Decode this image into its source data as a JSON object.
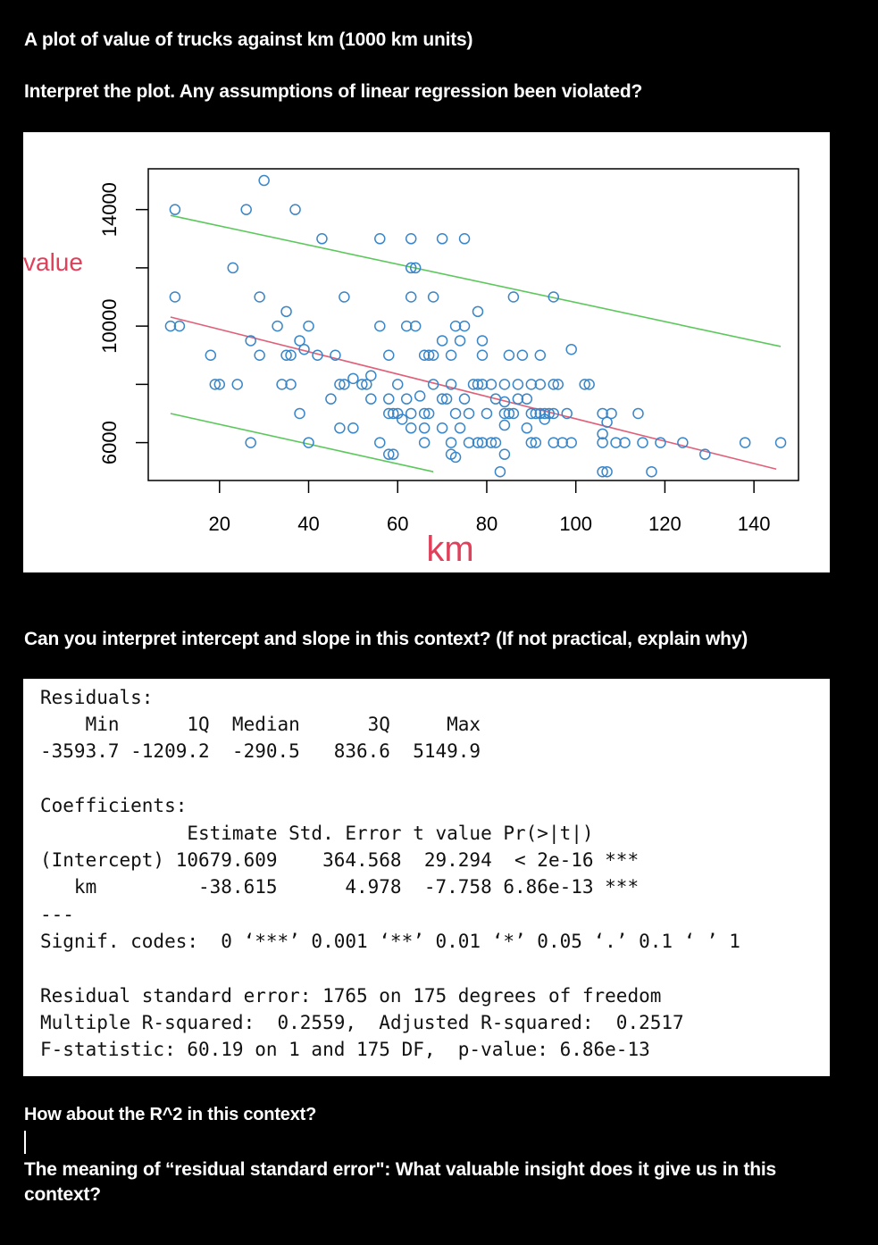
{
  "headings": {
    "h1": "A plot of value of trucks against km (1000 km units)",
    "h2": "Interpret the plot. Any assumptions of linear regression been violated?",
    "h3": "Can you interpret intercept and slope in this context? (If not practical, explain why)",
    "h4": "How about the  R^2 in this context?",
    "h5": "The meaning of “residual standard error\": What valuable insight does it give us in this context?"
  },
  "chart_data": {
    "type": "scatter",
    "xlabel": "km",
    "ylabel": "value",
    "xlim": [
      4,
      150
    ],
    "ylim": [
      4700,
      15400
    ],
    "xticks": [
      "20",
      "40",
      "60",
      "80",
      "100",
      "120",
      "140"
    ],
    "yticks": [
      "6000",
      "10000",
      "14000"
    ],
    "point_color": "#3a86c8",
    "fit_color": "#e0607a",
    "band_color": "#5bc85b",
    "points": [
      [
        10,
        14000
      ],
      [
        26,
        14000
      ],
      [
        30,
        15000
      ],
      [
        37,
        14000
      ],
      [
        43,
        13000
      ],
      [
        56,
        13000
      ],
      [
        63,
        13000
      ],
      [
        70,
        13000
      ],
      [
        75,
        13000
      ],
      [
        23,
        12000
      ],
      [
        63,
        12000
      ],
      [
        64,
        12000
      ],
      [
        63,
        11000
      ],
      [
        68,
        11000
      ],
      [
        86,
        11000
      ],
      [
        95,
        11000
      ],
      [
        10,
        11000
      ],
      [
        35,
        10500
      ],
      [
        48,
        11000
      ],
      [
        29,
        11000
      ],
      [
        9,
        10000
      ],
      [
        11,
        10000
      ],
      [
        33,
        10000
      ],
      [
        40,
        10000
      ],
      [
        56,
        10000
      ],
      [
        62,
        10000
      ],
      [
        64,
        10000
      ],
      [
        73,
        10000
      ],
      [
        75,
        10000
      ],
      [
        78,
        10500
      ],
      [
        27,
        9500
      ],
      [
        38,
        9500
      ],
      [
        39,
        9200
      ],
      [
        70,
        9500
      ],
      [
        74,
        9500
      ],
      [
        79,
        9500
      ],
      [
        99,
        9200
      ],
      [
        18,
        9000
      ],
      [
        29,
        9000
      ],
      [
        35,
        9000
      ],
      [
        36,
        9000
      ],
      [
        42,
        9000
      ],
      [
        46,
        9000
      ],
      [
        58,
        9000
      ],
      [
        66,
        9000
      ],
      [
        67,
        9000
      ],
      [
        68,
        9000
      ],
      [
        72,
        9000
      ],
      [
        79,
        9000
      ],
      [
        85,
        9000
      ],
      [
        88,
        9000
      ],
      [
        92,
        9000
      ],
      [
        19,
        8000
      ],
      [
        20,
        8000
      ],
      [
        24,
        8000
      ],
      [
        34,
        8000
      ],
      [
        36,
        8000
      ],
      [
        47,
        8000
      ],
      [
        48,
        8000
      ],
      [
        50,
        8200
      ],
      [
        52,
        8000
      ],
      [
        53,
        8000
      ],
      [
        54,
        8300
      ],
      [
        60,
        8000
      ],
      [
        68,
        8000
      ],
      [
        72,
        8000
      ],
      [
        77,
        8000
      ],
      [
        78,
        8000
      ],
      [
        79,
        8000
      ],
      [
        81,
        8000
      ],
      [
        84,
        8000
      ],
      [
        87,
        8000
      ],
      [
        90,
        8000
      ],
      [
        92,
        8000
      ],
      [
        95,
        8000
      ],
      [
        96,
        8000
      ],
      [
        102,
        8000
      ],
      [
        103,
        8000
      ],
      [
        45,
        7500
      ],
      [
        54,
        7500
      ],
      [
        58,
        7500
      ],
      [
        62,
        7500
      ],
      [
        65,
        7600
      ],
      [
        70,
        7500
      ],
      [
        71,
        7500
      ],
      [
        75,
        7500
      ],
      [
        82,
        7500
      ],
      [
        84,
        7400
      ],
      [
        87,
        7500
      ],
      [
        89,
        7500
      ],
      [
        38,
        7000
      ],
      [
        58,
        7000
      ],
      [
        59,
        7000
      ],
      [
        60,
        7000
      ],
      [
        61,
        6800
      ],
      [
        63,
        7000
      ],
      [
        66,
        7000
      ],
      [
        67,
        7000
      ],
      [
        73,
        7000
      ],
      [
        76,
        7000
      ],
      [
        80,
        7000
      ],
      [
        84,
        7000
      ],
      [
        85,
        7000
      ],
      [
        86,
        7000
      ],
      [
        90,
        7000
      ],
      [
        91,
        7000
      ],
      [
        92,
        7000
      ],
      [
        93,
        7000
      ],
      [
        94,
        7000
      ],
      [
        95,
        7000
      ],
      [
        98,
        7000
      ],
      [
        106,
        7000
      ],
      [
        108,
        7000
      ],
      [
        114,
        7000
      ],
      [
        84,
        6600
      ],
      [
        47,
        6500
      ],
      [
        50,
        6500
      ],
      [
        63,
        6500
      ],
      [
        66,
        6500
      ],
      [
        70,
        6500
      ],
      [
        74,
        6500
      ],
      [
        89,
        6500
      ],
      [
        93,
        6800
      ],
      [
        107,
        6700
      ],
      [
        27,
        6000
      ],
      [
        40,
        6000
      ],
      [
        56,
        6000
      ],
      [
        66,
        6000
      ],
      [
        72,
        6000
      ],
      [
        76,
        6000
      ],
      [
        78,
        6000
      ],
      [
        79,
        6000
      ],
      [
        81,
        6000
      ],
      [
        82,
        6000
      ],
      [
        90,
        6000
      ],
      [
        91,
        6000
      ],
      [
        95,
        6000
      ],
      [
        97,
        6000
      ],
      [
        99,
        6000
      ],
      [
        106,
        6000
      ],
      [
        109,
        6000
      ],
      [
        111,
        6000
      ],
      [
        115,
        6000
      ],
      [
        119,
        6000
      ],
      [
        124,
        6000
      ],
      [
        138,
        6000
      ],
      [
        146,
        6000
      ],
      [
        72,
        5600
      ],
      [
        73,
        5500
      ],
      [
        58,
        5600
      ],
      [
        59,
        5600
      ],
      [
        106,
        5000
      ],
      [
        107,
        5000
      ],
      [
        83,
        5000
      ],
      [
        117,
        5000
      ],
      [
        129,
        5600
      ],
      [
        84,
        5600
      ],
      [
        106,
        6300
      ]
    ],
    "fit_line": [
      [
        9,
        10310
      ],
      [
        145,
        5090
      ]
    ],
    "upper_band": [
      [
        9,
        13800
      ],
      [
        146,
        9300
      ]
    ],
    "lower_band": [
      [
        9,
        7000
      ],
      [
        68,
        5000
      ]
    ]
  },
  "regression_output": {
    "residuals_label": "Residuals:",
    "residuals_header": "    Min      1Q  Median      3Q     Max ",
    "residuals_values": "-3593.7 -1209.2  -290.5   836.6  5149.9 ",
    "coefficients_label": "Coefficients:",
    "coef_header": "             Estimate Std. Error t value Pr(>|t|)    ",
    "coef_row1": "(Intercept) 10679.609    364.568  29.294  < 2e-16 ***",
    "coef_row2": "   km         -38.615      4.978  -7.758 6.86e-13 ***",
    "dashes": "---",
    "signif": "Signif. codes:  0 ‘***’ 0.001 ‘**’ 0.01 ‘*’ 0.05 ‘.’ 0.1 ‘ ’ 1",
    "rse": "Residual standard error: 1765 on 175 degrees of freedom",
    "r2": "Multiple R-squared:  0.2559,\tAdjusted R-squared:  0.2517 ",
    "fstat": "F-statistic: 60.19 on 1 and 175 DF,  p-value: 6.86e-13"
  }
}
